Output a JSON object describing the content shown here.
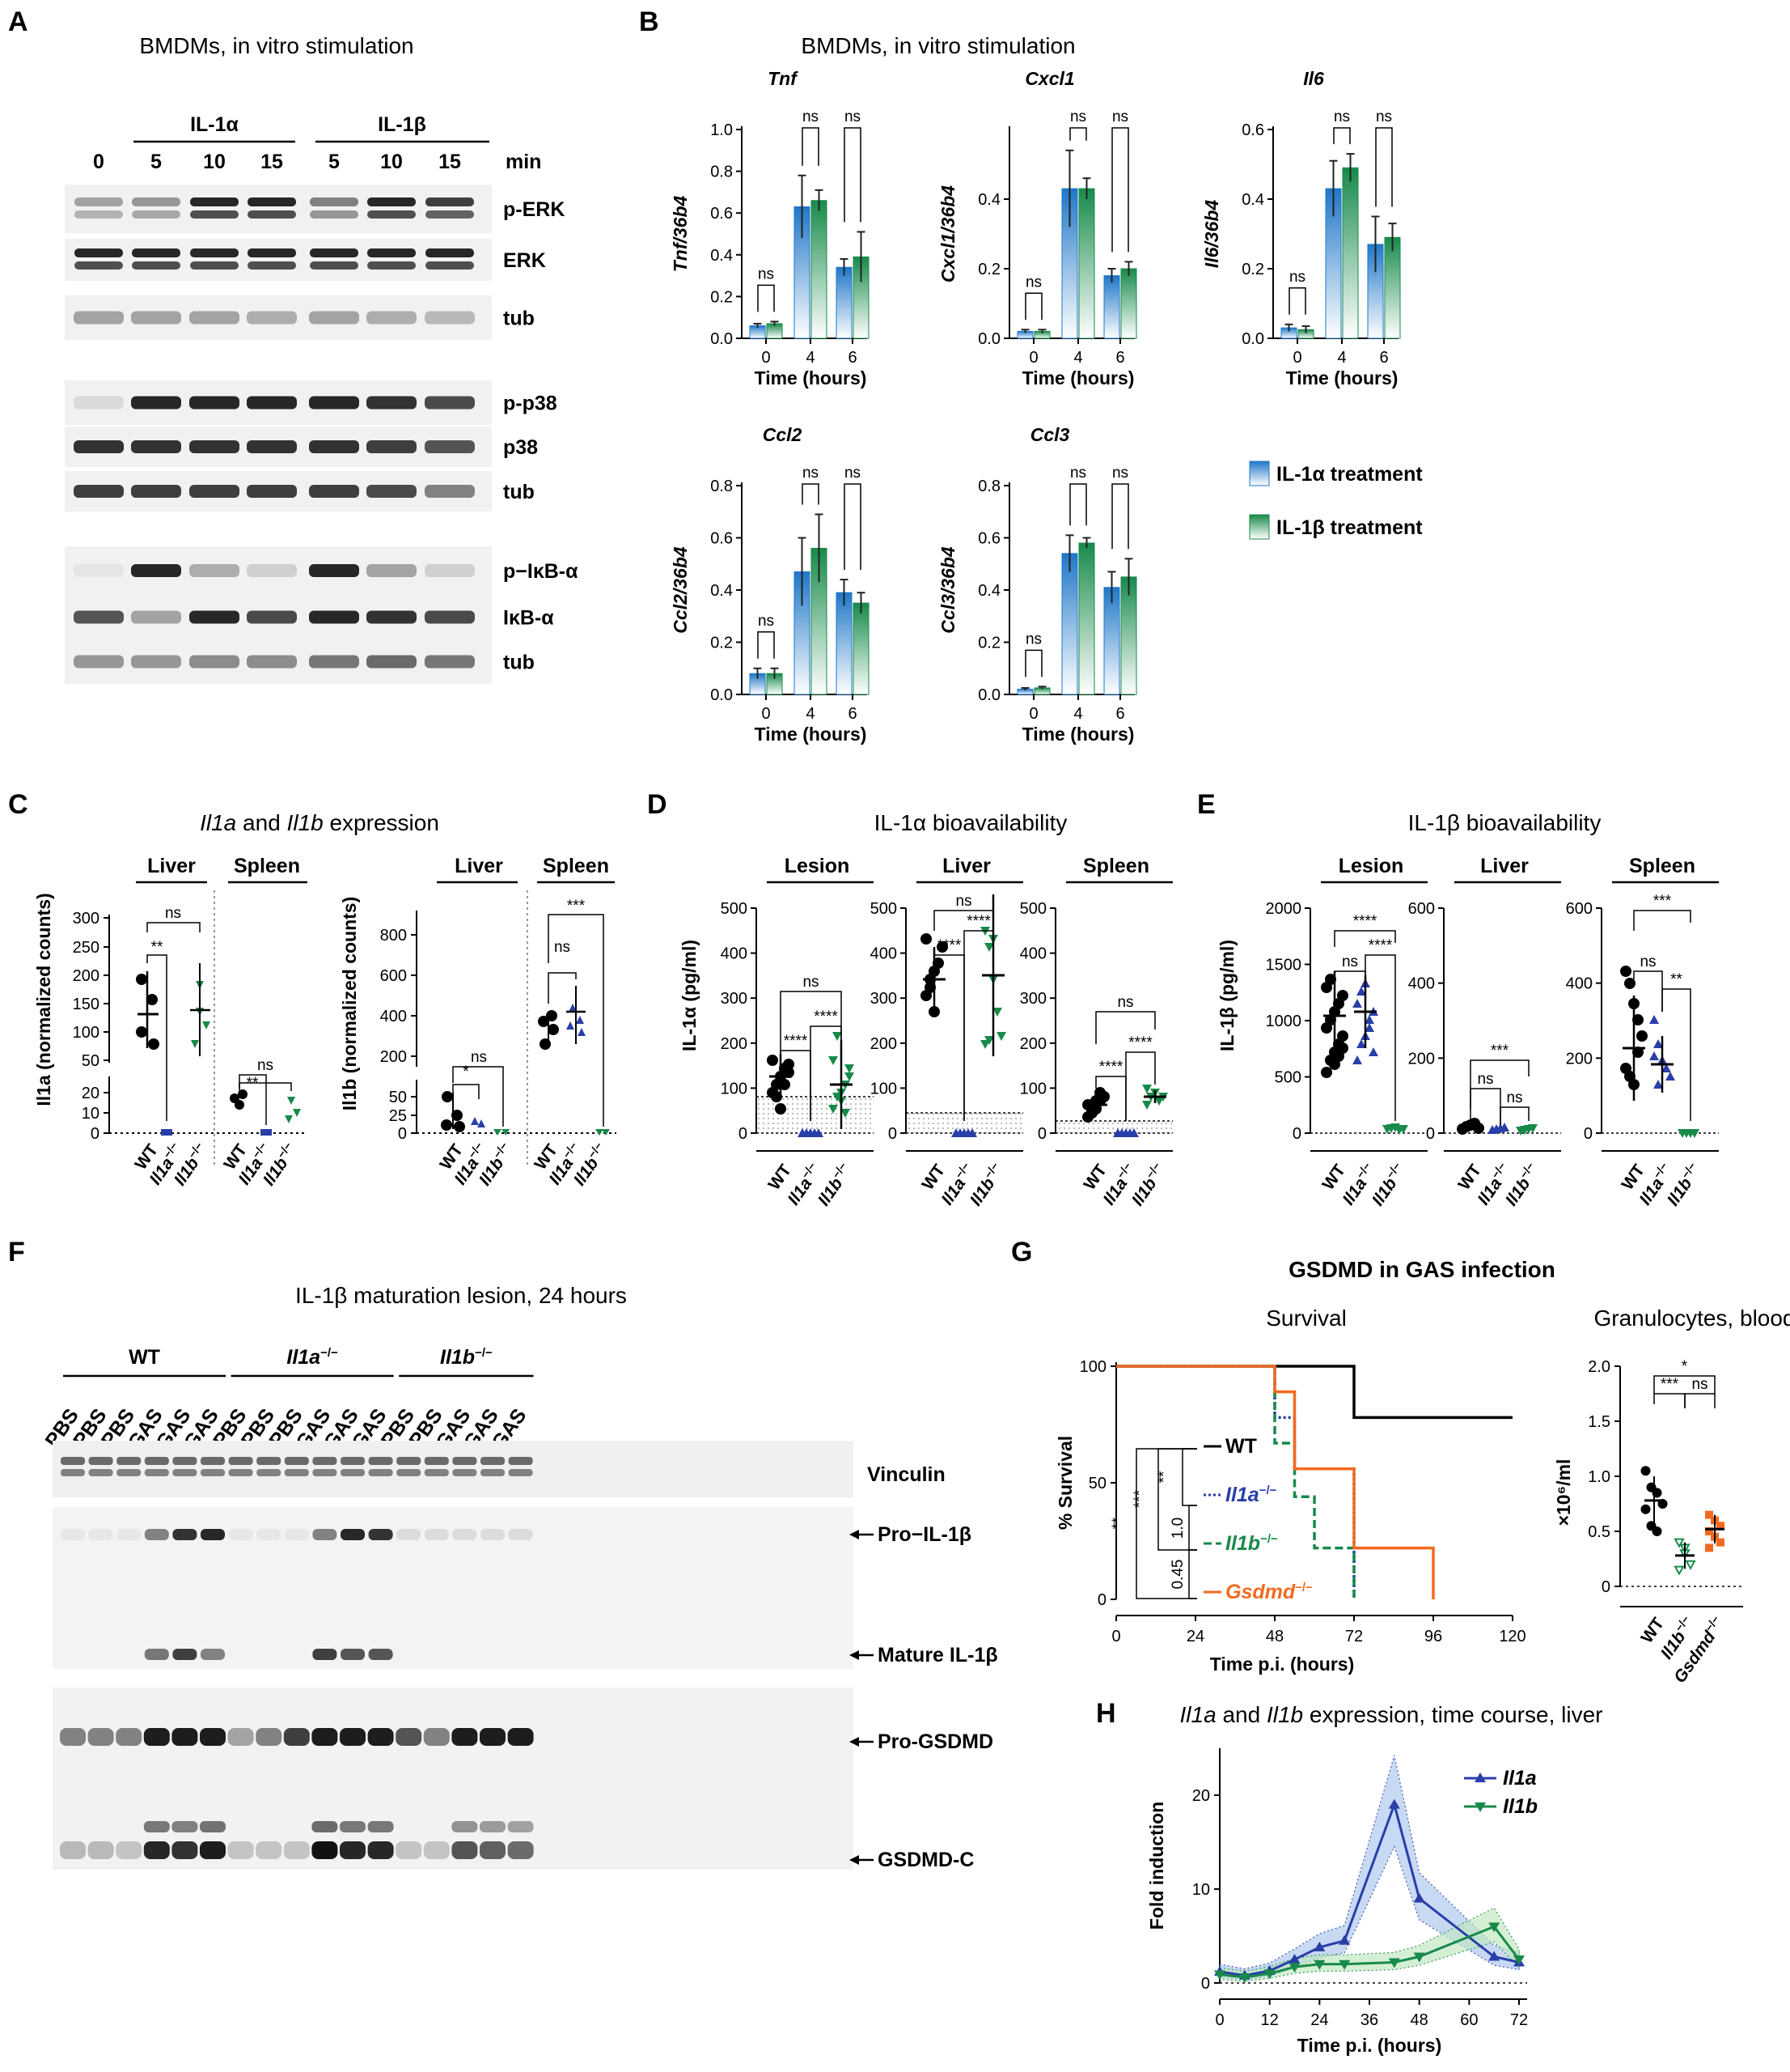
{
  "panels": {
    "A": {
      "letter": "A",
      "title": "BMDMs, in vitro stimulation",
      "group1": "IL-1α",
      "group2": "IL-1β",
      "time_unit": "min",
      "lanes": [
        "0",
        "5",
        "10",
        "15",
        "5",
        "10",
        "15"
      ],
      "blots": [
        "p-ERK",
        "ERK",
        "tub",
        "p-p38",
        "p38",
        "tub",
        "p−IκB-α",
        "IκB-α",
        "tub"
      ]
    },
    "B": {
      "letter": "B",
      "title": "BMDMs, in vitro stimulation",
      "legend": [
        "IL-1α treatment",
        "IL-1β treatment"
      ],
      "sig_label": "ns"
    },
    "C": {
      "letter": "C",
      "title_g1": "Il1a",
      "title_mid": " and ",
      "title_g2": "Il1b",
      "title_end": " expression",
      "liver": "Liver",
      "spleen": "Spleen",
      "ylabel_a": "Il1a (normalized counts)",
      "ylabel_b": "Il1b (normalized counts)",
      "ticks_a_top": [
        "300",
        "250",
        "200",
        "150",
        "100",
        "50"
      ],
      "ticks_a_bot": [
        "20",
        "10",
        "0"
      ],
      "ticks_b_top": [
        "800",
        "600",
        "400",
        "200"
      ],
      "ticks_b_bot": [
        "50",
        "25",
        "0"
      ],
      "sig": [
        "ns",
        "**",
        "ns",
        "**",
        "ns",
        "*",
        "ns",
        "***"
      ]
    },
    "D": {
      "letter": "D",
      "title": "IL-1α bioavailability",
      "lesion": "Lesion",
      "liver": "Liver",
      "spleen": "Spleen",
      "ylabel": "IL-1α (pg/ml)",
      "ticks": [
        "500",
        "400",
        "300",
        "200",
        "100",
        "0"
      ],
      "sig": [
        "ns",
        "****",
        "****",
        "ns",
        "****",
        "****",
        "ns",
        "****",
        "****"
      ]
    },
    "E": {
      "letter": "E",
      "title": "IL-1β bioavailability",
      "lesion": "Lesion",
      "liver": "Liver",
      "spleen": "Spleen",
      "ylabel": "IL-1β (pg/ml)",
      "ticks_lesion": [
        "2000",
        "1500",
        "1000",
        "500",
        "0"
      ],
      "ticks_600": [
        "600",
        "400",
        "200",
        "0"
      ],
      "sig": [
        "****",
        "ns",
        "****",
        "ns",
        "ns",
        "***",
        "ns",
        "**"
      ]
    },
    "F": {
      "letter": "F",
      "title": "IL-1β maturation lesion, 24 hours",
      "groups": [
        "WT",
        "Il1a",
        "Il1b"
      ],
      "sup": "−/−",
      "lanes": [
        "PBS",
        "PBS",
        "PBS",
        "GAS",
        "GAS",
        "GAS",
        "PBS",
        "PBS",
        "PBS",
        "GAS",
        "GAS",
        "GAS",
        "PBS",
        "PBS",
        "GAS",
        "GAS",
        "GAS"
      ],
      "bands": [
        "Vinculin",
        "Pro−IL-1β",
        "Mature IL-1β",
        "Pro-GSDMD",
        "GSDMD-C"
      ]
    },
    "G": {
      "letter": "G",
      "title": "GSDMD in GAS infection",
      "survival_title": "Survival",
      "gran_title": "Granulocytes, blood",
      "ylabel": "% Survival",
      "xlabel": "Time p.i. (hours)",
      "gran_ylabel": "×10⁶/ml",
      "legend": [
        "WT",
        "Il1a",
        "Il1b",
        "Gsdmd"
      ],
      "sup": "−/−",
      "pvals": [
        "**",
        "***",
        "**",
        "1.0",
        "0.45"
      ],
      "gran_sig": [
        "*",
        "***",
        "ns"
      ],
      "xticks": [
        "0",
        "24",
        "48",
        "72",
        "96",
        "120"
      ],
      "yticks": [
        "100",
        "50",
        "0"
      ],
      "gran_ticks": [
        "2.0",
        "1.5",
        "1.0",
        "0.5",
        "0"
      ]
    },
    "H": {
      "letter": "H",
      "title_g1": "Il1a",
      "title_mid": " and ",
      "title_g2": "Il1b",
      "title_end": " expression, time course, liver",
      "ylabel": "Fold induction",
      "xlabel": "Time p.i. (hours)",
      "legend": [
        "Il1a",
        "Il1b"
      ]
    }
  },
  "chart_data": [
    {
      "id": "B-Tnf",
      "type": "bar",
      "title": "Tnf",
      "ylabel": "Tnf/36b4",
      "xlabel": "Time (hours)",
      "categories": [
        "0",
        "4",
        "6"
      ],
      "ylim": [
        0,
        1.0
      ],
      "yticks": [
        0,
        0.2,
        0.4,
        0.6,
        0.8,
        1.0
      ],
      "series": [
        {
          "name": "IL-1α treatment",
          "values": [
            0.06,
            0.63,
            0.34
          ],
          "err": [
            0.01,
            0.15,
            0.04
          ]
        },
        {
          "name": "IL-1β treatment",
          "values": [
            0.07,
            0.66,
            0.39
          ],
          "err": [
            0.01,
            0.05,
            0.12
          ]
        }
      ]
    },
    {
      "id": "B-Cxcl1",
      "type": "bar",
      "title": "Cxcl1",
      "ylabel": "Cxcl1/36b4",
      "xlabel": "Time (hours)",
      "categories": [
        "0",
        "4",
        "6"
      ],
      "ylim": [
        0,
        0.6
      ],
      "yticks": [
        0,
        0.2,
        0.4
      ],
      "series": [
        {
          "name": "IL-1α treatment",
          "values": [
            0.02,
            0.43,
            0.18
          ],
          "err": [
            0.005,
            0.11,
            0.02
          ]
        },
        {
          "name": "IL-1β treatment",
          "values": [
            0.02,
            0.43,
            0.2
          ],
          "err": [
            0.005,
            0.03,
            0.02
          ]
        }
      ]
    },
    {
      "id": "B-Il6",
      "type": "bar",
      "title": "Il6",
      "ylabel": "Il6/36b4",
      "xlabel": "Time (hours)",
      "categories": [
        "0",
        "4",
        "6"
      ],
      "ylim": [
        0,
        0.6
      ],
      "yticks": [
        0,
        0.2,
        0.4,
        0.6
      ],
      "series": [
        {
          "name": "IL-1α treatment",
          "values": [
            0.03,
            0.43,
            0.27
          ],
          "err": [
            0.01,
            0.08,
            0.08
          ]
        },
        {
          "name": "IL-1β treatment",
          "values": [
            0.025,
            0.49,
            0.29
          ],
          "err": [
            0.01,
            0.04,
            0.04
          ]
        }
      ]
    },
    {
      "id": "B-Ccl2",
      "type": "bar",
      "title": "Ccl2",
      "ylabel": "Ccl2/36b4",
      "xlabel": "Time (hours)",
      "categories": [
        "0",
        "4",
        "6"
      ],
      "ylim": [
        0,
        0.8
      ],
      "yticks": [
        0,
        0.2,
        0.4,
        0.6,
        0.8
      ],
      "series": [
        {
          "name": "IL-1α treatment",
          "values": [
            0.08,
            0.47,
            0.39
          ],
          "err": [
            0.02,
            0.13,
            0.05
          ]
        },
        {
          "name": "IL-1β treatment",
          "values": [
            0.08,
            0.56,
            0.35
          ],
          "err": [
            0.02,
            0.13,
            0.04
          ]
        }
      ]
    },
    {
      "id": "B-Ccl3",
      "type": "bar",
      "title": "Ccl3",
      "ylabel": "Ccl3/36b4",
      "xlabel": "Time (hours)",
      "categories": [
        "0",
        "4",
        "6"
      ],
      "ylim": [
        0,
        0.8
      ],
      "yticks": [
        0,
        0.2,
        0.4,
        0.6,
        0.8
      ],
      "series": [
        {
          "name": "IL-1α treatment",
          "values": [
            0.02,
            0.54,
            0.41
          ],
          "err": [
            0.005,
            0.07,
            0.06
          ]
        },
        {
          "name": "IL-1β treatment",
          "values": [
            0.025,
            0.58,
            0.45
          ],
          "err": [
            0.005,
            0.02,
            0.07
          ]
        }
      ]
    },
    {
      "id": "G-survival",
      "type": "line",
      "title": "Survival",
      "xlabel": "Time p.i. (hours)",
      "ylabel": "% Survival",
      "xlim": [
        0,
        120
      ],
      "ylim": [
        0,
        100
      ],
      "series": [
        {
          "name": "WT",
          "x": [
            0,
            72,
            72,
            120
          ],
          "y": [
            100,
            100,
            78,
            78
          ]
        },
        {
          "name": "Il1a",
          "x": [
            0,
            48,
            48,
            54,
            54,
            72,
            72
          ],
          "y": [
            100,
            100,
            78,
            78,
            56,
            56,
            0
          ]
        },
        {
          "name": "Il1b",
          "x": [
            0,
            48,
            48,
            54,
            54,
            60,
            60,
            72,
            72
          ],
          "y": [
            100,
            100,
            67,
            67,
            44,
            44,
            22,
            22,
            0
          ]
        },
        {
          "name": "Gsdmd",
          "x": [
            0,
            48,
            48,
            54,
            54,
            60,
            60,
            72,
            72,
            96,
            96
          ],
          "y": [
            100,
            100,
            89,
            89,
            56,
            56,
            56,
            56,
            22,
            22,
            0
          ]
        }
      ]
    },
    {
      "id": "H-timecourse",
      "type": "line",
      "title": "Il1a and Il1b expression, time course, liver",
      "xlabel": "Time p.i. (hours)",
      "ylabel": "Fold induction",
      "xlim": [
        0,
        72
      ],
      "ylim": [
        0,
        25
      ],
      "series": [
        {
          "name": "Il1a",
          "x": [
            0,
            6,
            12,
            18,
            24,
            30,
            42,
            48,
            66,
            72
          ],
          "y": [
            1.2,
            0.8,
            1.3,
            2.5,
            3.8,
            4.5,
            19,
            9,
            2.8,
            2.2
          ]
        },
        {
          "name": "Il1b",
          "x": [
            0,
            6,
            12,
            18,
            24,
            30,
            42,
            48,
            66,
            72
          ],
          "y": [
            0.9,
            0.6,
            1.0,
            1.7,
            2.0,
            2.0,
            2.2,
            2.8,
            6.0,
            2.5
          ]
        }
      ]
    }
  ]
}
